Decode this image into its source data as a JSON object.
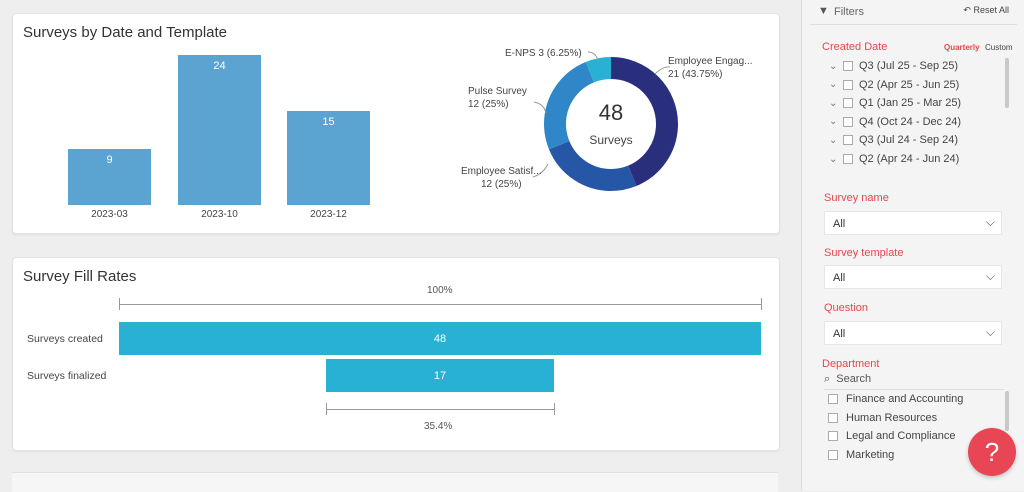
{
  "surveys_card": {
    "title": "Surveys by Date and Template"
  },
  "chart_data": [
    {
      "type": "bar",
      "title": "Surveys by Date and Template",
      "categories": [
        "2023-03",
        "2023-10",
        "2023-12"
      ],
      "values": [
        9,
        24,
        15
      ],
      "ylim": [
        0,
        24
      ]
    },
    {
      "type": "pie",
      "center_value": "48",
      "center_label": "Surveys",
      "slices": [
        {
          "name": "Employee Engag...",
          "value": 21,
          "pct": "21 (43.75%)",
          "color": "#2a2f7d"
        },
        {
          "name": "Employee Satisf...",
          "value": 12,
          "pct": "12 (25%)",
          "color": "#2656a6"
        },
        {
          "name": "Pulse Survey",
          "value": 12,
          "pct": "12 (25%)",
          "color": "#2f86c8"
        },
        {
          "name": "E-NPS 3",
          "value": 3,
          "pct": "(6.25%)",
          "color": "#29b1d3"
        }
      ]
    },
    {
      "type": "bar",
      "title": "Survey Fill Rates",
      "categories": [
        "Surveys created",
        "Surveys finalized"
      ],
      "values": [
        48,
        17
      ],
      "top_pct": "100%",
      "bottom_pct": "35.4%"
    }
  ],
  "filters": {
    "header": "Filters",
    "reset": "Reset All",
    "created_date": {
      "label": "Created Date",
      "mode_quarterly": "Quarterly",
      "mode_custom": "Custom",
      "items": [
        "Q3 (Jul 25 - Sep 25)",
        "Q2 (Apr 25 - Jun 25)",
        "Q1 (Jan 25 - Mar 25)",
        "Q4 (Oct 24 - Dec 24)",
        "Q3 (Jul 24 - Sep 24)",
        "Q2 (Apr 24 - Jun 24)"
      ]
    },
    "survey_name": {
      "label": "Survey name",
      "value": "All"
    },
    "survey_template": {
      "label": "Survey template",
      "value": "All"
    },
    "question": {
      "label": "Question",
      "value": "All"
    },
    "department": {
      "label": "Department",
      "search_placeholder": "Search",
      "items": [
        "Finance and Accounting",
        "Human Resources",
        "Legal and Compliance",
        "Marketing"
      ]
    }
  },
  "help": {
    "label": "?"
  },
  "colors": {
    "accent": "#e4474f",
    "bar": "#5ba3d0",
    "funnel": "#29b1d3"
  }
}
